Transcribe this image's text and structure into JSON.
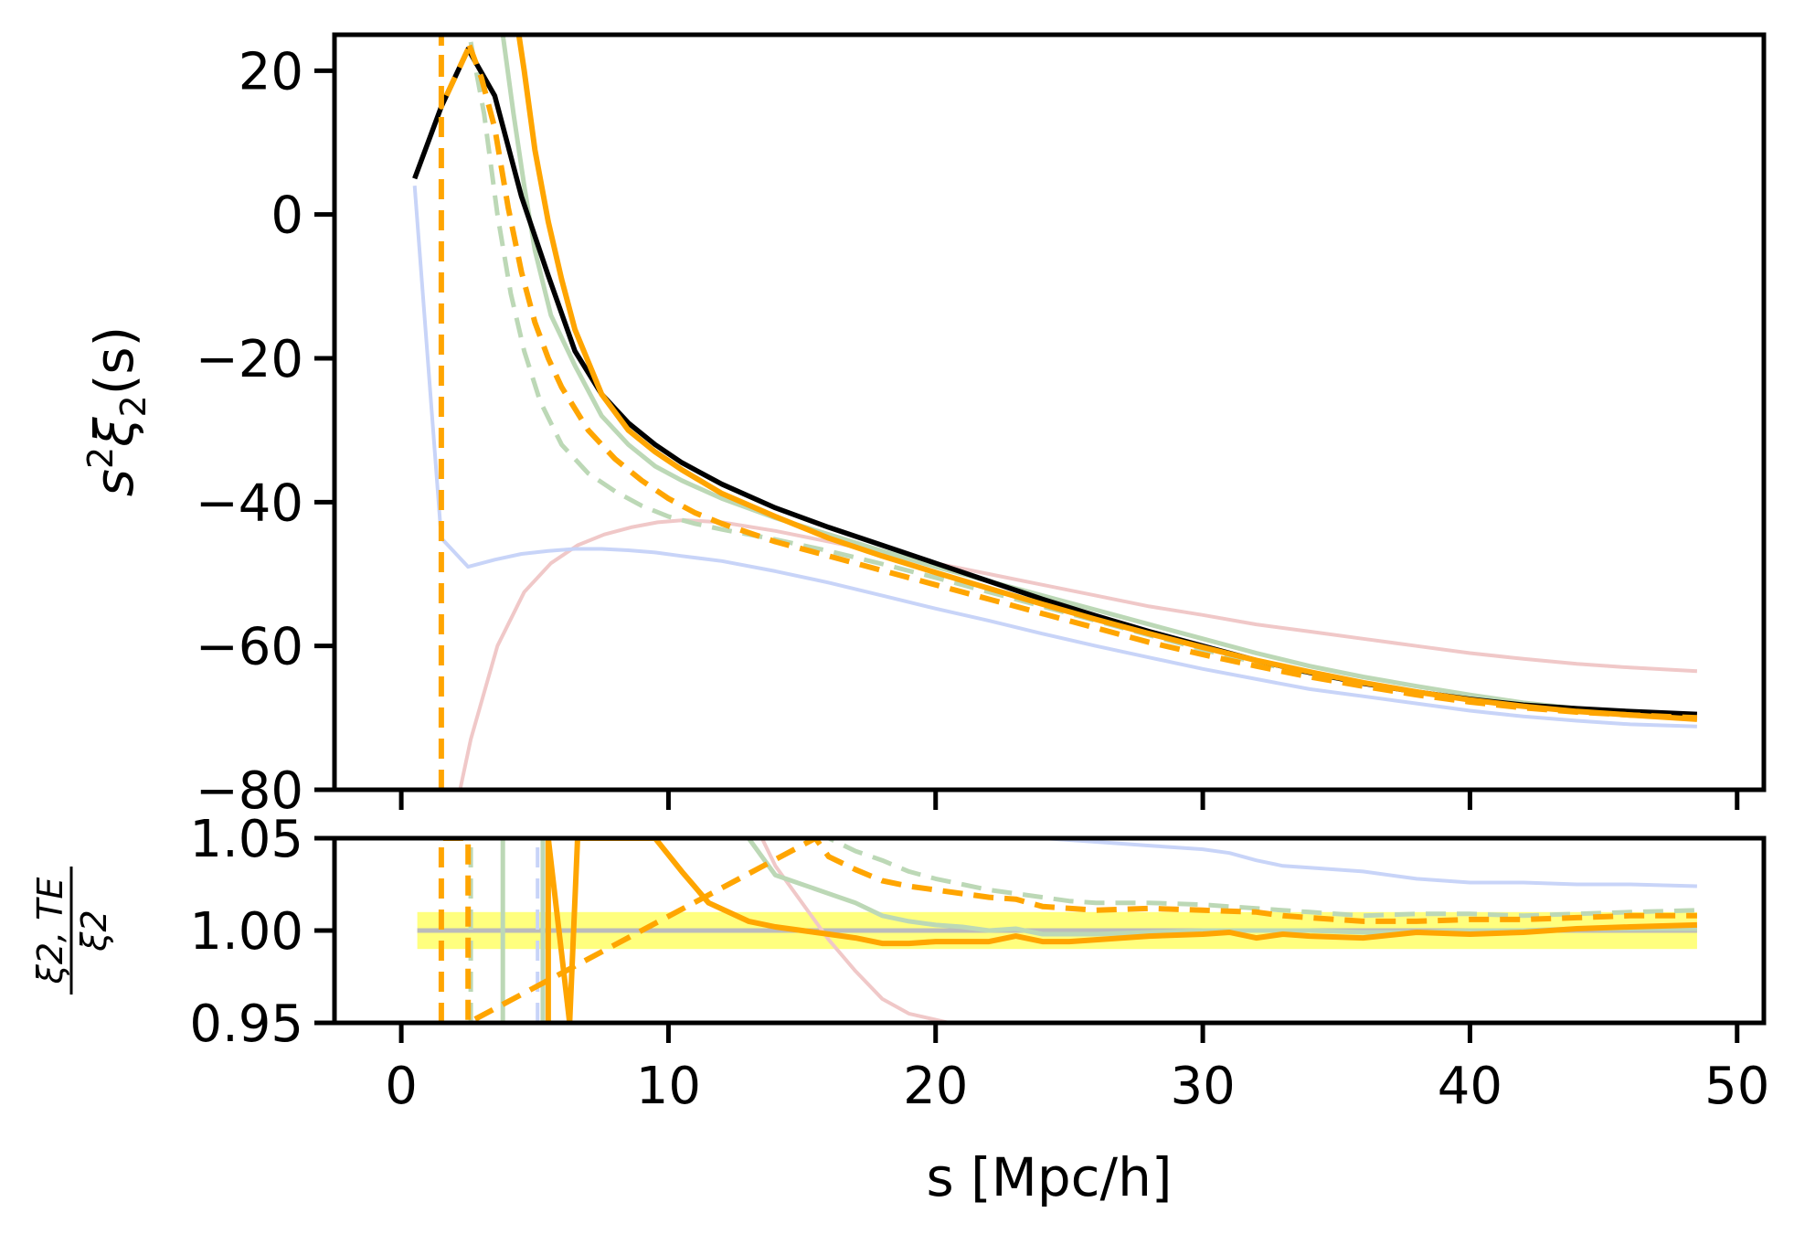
{
  "chart_data": [
    {
      "type": "line",
      "panel": "top",
      "xlim": [
        -2.5,
        51
      ],
      "ylim": [
        -80,
        25
      ],
      "yticks": [
        20,
        0,
        -20,
        -40,
        -60,
        -80
      ],
      "ytick_labels": [
        "20",
        "0",
        "−20",
        "−40",
        "−60",
        "−80"
      ],
      "xticks": [
        0,
        10,
        20,
        30,
        40,
        50
      ],
      "ylabel_parts": [
        "s",
        "2",
        "ξ",
        "2",
        "(s)"
      ],
      "series": [
        {
          "name": "red-faint",
          "color": "#f0c8c8",
          "width": 4,
          "dash": false,
          "x": [
            2.2,
            2.6,
            3.6,
            4.6,
            5.6,
            6.6,
            7.6,
            8.6,
            9.6,
            10.6,
            12,
            14,
            16,
            18,
            20,
            22,
            24,
            26,
            28,
            30,
            32,
            34,
            36,
            38,
            40,
            42,
            44,
            46,
            48.5
          ],
          "y": [
            -80,
            -73,
            -60,
            -52.5,
            -48.5,
            -46,
            -44.5,
            -43.5,
            -42.8,
            -42.5,
            -42.8,
            -44,
            -45.5,
            -47,
            -48.5,
            -50,
            -51.5,
            -53,
            -54.5,
            -55.7,
            -57,
            -58,
            -59,
            -60,
            -61,
            -61.8,
            -62.5,
            -63,
            -63.5
          ]
        },
        {
          "name": "blue-faint",
          "color": "#c8d4f8",
          "width": 4,
          "dash": false,
          "x": [
            0.5,
            1.5,
            2.5,
            3.5,
            4.5,
            5.5,
            6.5,
            7.5,
            8.5,
            9.5,
            10.5,
            12,
            14,
            16,
            18,
            20,
            22,
            24,
            26,
            28,
            30,
            32,
            34,
            36,
            38,
            40,
            42,
            44,
            46,
            48.5
          ],
          "y": [
            4,
            -45,
            -49,
            -48,
            -47.2,
            -46.8,
            -46.5,
            -46.5,
            -46.7,
            -47,
            -47.5,
            -48.2,
            -49.6,
            -51.2,
            -53,
            -54.8,
            -56.5,
            -58.3,
            -60,
            -61.6,
            -63.2,
            -64.6,
            -66,
            -67,
            -68,
            -69,
            -69.8,
            -70.4,
            -70.9,
            -71.2
          ]
        },
        {
          "name": "green-faint-solid",
          "color": "#bcd8b6",
          "width": 5,
          "dash": false,
          "x": [
            3.8,
            4.2,
            4.6,
            5.0,
            5.6,
            6.5,
            7.5,
            8.5,
            9.5,
            10.5,
            12,
            14,
            16,
            18,
            20,
            22,
            24,
            26,
            28,
            30,
            32,
            34,
            36,
            38,
            40,
            42,
            44,
            46,
            48.5
          ],
          "y": [
            25,
            14,
            4,
            -5,
            -14,
            -21,
            -28,
            -32,
            -35,
            -37,
            -39.5,
            -42.2,
            -44.5,
            -46.8,
            -49,
            -51,
            -53,
            -55,
            -57,
            -59,
            -61,
            -62.8,
            -64.3,
            -65.6,
            -66.8,
            -67.9,
            -68.7,
            -69.3,
            -70
          ]
        },
        {
          "name": "green-faint-dashed",
          "color": "#bcd8b6",
          "width": 5,
          "dash": true,
          "x": [
            2.6,
            3.1,
            3.6,
            4.1,
            4.6,
            5.2,
            6,
            7,
            8,
            9,
            10,
            11,
            12,
            14,
            16,
            18,
            20,
            22,
            24,
            26,
            28,
            30,
            32,
            34,
            36,
            38,
            40,
            42,
            44,
            46,
            48.5
          ],
          "y": [
            24,
            14,
            0,
            -11,
            -19,
            -26,
            -32,
            -36,
            -38.5,
            -40.5,
            -42,
            -43,
            -43.8,
            -45.2,
            -46.8,
            -48.6,
            -50.5,
            -52.5,
            -54.5,
            -56.5,
            -58.5,
            -60.5,
            -62.3,
            -63.8,
            -65.2,
            -66.4,
            -67.5,
            -68.4,
            -69.1,
            -69.6,
            -70.2
          ]
        },
        {
          "name": "black-true",
          "color": "#000000",
          "width": 5.5,
          "dash": false,
          "x": [
            0.5,
            1.5,
            2.5,
            3.5,
            4.5,
            5.5,
            6.5,
            7.5,
            8.5,
            9.5,
            10.5,
            12,
            14,
            16,
            18,
            20,
            22,
            24,
            26,
            28,
            30,
            32,
            34,
            36,
            38,
            40,
            42,
            44,
            46,
            48.5
          ],
          "y": [
            5,
            15,
            23,
            16.5,
            2.5,
            -8.5,
            -19,
            -25,
            -29,
            -32,
            -34.5,
            -37.5,
            -40.8,
            -43.5,
            -46,
            -48.5,
            -51,
            -53.5,
            -55.8,
            -58,
            -60,
            -62,
            -63.7,
            -65.2,
            -66.4,
            -67.4,
            -68.2,
            -68.7,
            -69.1,
            -69.5
          ]
        },
        {
          "name": "orange-solid",
          "color": "#ffa500",
          "width": 6,
          "dash": false,
          "x": [
            4.4,
            4.6,
            5.0,
            5.5,
            6.0,
            6.5,
            7.5,
            8.5,
            9.5,
            10.5,
            12,
            14,
            16,
            18,
            20,
            22,
            24,
            26,
            28,
            30,
            32,
            34,
            36,
            38,
            40,
            42,
            44,
            46,
            48.5
          ],
          "y": [
            25,
            20,
            9,
            -1,
            -9,
            -16,
            -25,
            -30,
            -33,
            -35.5,
            -38.8,
            -42,
            -45,
            -47.5,
            -49.8,
            -52,
            -54.2,
            -56.3,
            -58.3,
            -60.2,
            -62,
            -63.6,
            -65.1,
            -66.4,
            -67.5,
            -68.4,
            -69.1,
            -69.6,
            -70.2
          ]
        },
        {
          "name": "orange-dashed",
          "color": "#ffa500",
          "width": 6,
          "dash": true,
          "x": [
            1.5,
            1.5,
            1.5,
            2.5,
            2.5,
            3.0,
            3.5,
            4.0,
            4.5,
            5.0,
            5.5,
            6.0,
            7.0,
            8.0,
            9.0,
            10.0,
            11,
            12,
            14,
            16,
            18,
            20,
            22,
            24,
            26,
            28,
            30,
            32,
            34,
            36,
            38,
            40,
            42,
            44,
            46,
            48.5
          ],
          "y": [
            -80,
            25,
            15,
            23,
            24,
            19,
            12,
            1,
            -8,
            -15,
            -20,
            -24,
            -30,
            -34,
            -37,
            -39.5,
            -41.5,
            -43,
            -45.5,
            -47.5,
            -49.5,
            -51.5,
            -53.5,
            -55.5,
            -57.5,
            -59.5,
            -61.2,
            -62.8,
            -64.3,
            -65.6,
            -66.8,
            -67.8,
            -68.6,
            -69.2,
            -69.6,
            -70
          ]
        }
      ]
    },
    {
      "type": "line",
      "panel": "bottom",
      "xlim": [
        -2.5,
        51
      ],
      "ylim": [
        0.95,
        1.05
      ],
      "yticks": [
        1.05,
        1.0,
        0.95
      ],
      "ytick_labels": [
        "1.05",
        "1.00",
        "0.95"
      ],
      "xticks": [
        0,
        10,
        20,
        30,
        40,
        50
      ],
      "xtick_labels": [
        "0",
        "10",
        "20",
        "30",
        "40",
        "50"
      ],
      "xlabel": "s [Mpc/h]",
      "ylabel_numerator": "ξ2, TE",
      "ylabel_denominator": "ξ2",
      "band": {
        "x0": 0.6,
        "x1": 48.5,
        "y0": 0.99,
        "y1": 1.01,
        "color": "#ffff70"
      },
      "reference_line": {
        "y": 1.0,
        "color": "#bbbbbb"
      },
      "series": [
        {
          "name": "red-faint",
          "color": "#f0c8c8",
          "width": 4,
          "dash": false,
          "x": [
            13.5,
            14,
            15,
            16,
            17,
            18,
            19,
            20.5
          ],
          "y": [
            1.05,
            1.035,
            1.015,
            0.995,
            0.978,
            0.963,
            0.955,
            0.95
          ]
        },
        {
          "name": "blue-faint",
          "color": "#c8d4f8",
          "width": 4,
          "dash": false,
          "x": [
            24,
            26,
            28,
            30,
            31,
            32,
            33,
            34,
            36,
            38,
            40,
            42,
            44,
            46,
            48.5
          ],
          "y": [
            1.05,
            1.048,
            1.046,
            1.044,
            1.042,
            1.038,
            1.035,
            1.034,
            1.032,
            1.028,
            1.026,
            1.026,
            1.025,
            1.025,
            1.024
          ]
        },
        {
          "name": "blue-faint-spike",
          "color": "#c8d4f8",
          "width": 4,
          "dash": true,
          "x": [
            5.1,
            5.1
          ],
          "y": [
            0.95,
            1.05
          ]
        },
        {
          "name": "green-faint-solid",
          "color": "#bcd8b6",
          "width": 5,
          "dash": false,
          "x": [
            3.8,
            3.8,
            5.3,
            5.3
          ],
          "y": [
            0.95,
            1.05,
            1.05,
            0.95
          ]
        },
        {
          "name": "green-faint-solid-tail",
          "color": "#bcd8b6",
          "width": 5,
          "dash": false,
          "x": [
            13,
            14,
            15,
            16,
            17,
            18,
            19,
            20,
            21,
            22,
            23,
            24,
            26,
            28,
            30,
            32,
            34,
            36,
            38,
            40,
            42,
            44,
            46,
            48.5
          ],
          "y": [
            1.05,
            1.03,
            1.025,
            1.02,
            1.015,
            1.008,
            1.005,
            1.003,
            1.002,
            1.0,
            1.001,
            0.998,
            0.998,
            0.999,
            1.0,
            1.0,
            1.0,
            0.999,
            0.999,
            1.0,
            1.0,
            1.001,
            1.001,
            1.001
          ]
        },
        {
          "name": "green-faint-dashed",
          "color": "#bcd8b6",
          "width": 5,
          "dash": true,
          "x": [
            2.6,
            2.6,
            16,
            17,
            18,
            19,
            20,
            21,
            22,
            23,
            24,
            25,
            26,
            28,
            30,
            32,
            34,
            36,
            38,
            40,
            42,
            44,
            46,
            48.5
          ],
          "y": [
            0.95,
            1.05,
            1.05,
            1.043,
            1.038,
            1.032,
            1.028,
            1.025,
            1.022,
            1.02,
            1.018,
            1.016,
            1.015,
            1.015,
            1.014,
            1.012,
            1.01,
            1.008,
            1.009,
            1.009,
            1.008,
            1.009,
            1.01,
            1.011
          ]
        },
        {
          "name": "orange-solid",
          "color": "#ffa500",
          "width": 6,
          "dash": false,
          "x": [
            5.5,
            5.5,
            6.3,
            6.6,
            9.5,
            10.5,
            11.5,
            13,
            14,
            15,
            16,
            17,
            18,
            19,
            20,
            21,
            22,
            23,
            24,
            25,
            26,
            28,
            30,
            31,
            32,
            33,
            34,
            36,
            38,
            40,
            42,
            44,
            46,
            48.5
          ],
          "y": [
            0.95,
            1.05,
            0.95,
            1.05,
            1.05,
            1.032,
            1.015,
            1.005,
            1.002,
            1.0,
            0.998,
            0.996,
            0.993,
            0.993,
            0.994,
            0.994,
            0.994,
            0.997,
            0.994,
            0.994,
            0.995,
            0.997,
            0.998,
            0.999,
            0.996,
            0.998,
            0.997,
            0.996,
            0.999,
            0.998,
            0.999,
            1.001,
            1.002,
            1.003
          ]
        },
        {
          "name": "orange-dashed",
          "color": "#ffa500",
          "width": 6,
          "dash": true,
          "x": [
            1.5,
            1.5,
            2.5,
            2.5,
            15.5,
            16,
            17,
            18,
            19,
            20,
            21,
            22,
            23,
            24,
            25,
            26,
            28,
            30,
            32,
            33,
            34,
            36,
            38,
            40,
            42,
            44,
            46,
            48.5
          ],
          "y": [
            0.95,
            1.05,
            1.05,
            0.95,
            1.05,
            1.04,
            1.033,
            1.027,
            1.024,
            1.022,
            1.02,
            1.018,
            1.017,
            1.013,
            1.012,
            1.011,
            1.012,
            1.011,
            1.01,
            1.008,
            1.007,
            1.005,
            1.005,
            1.006,
            1.006,
            1.007,
            1.008,
            1.008
          ]
        }
      ]
    }
  ]
}
